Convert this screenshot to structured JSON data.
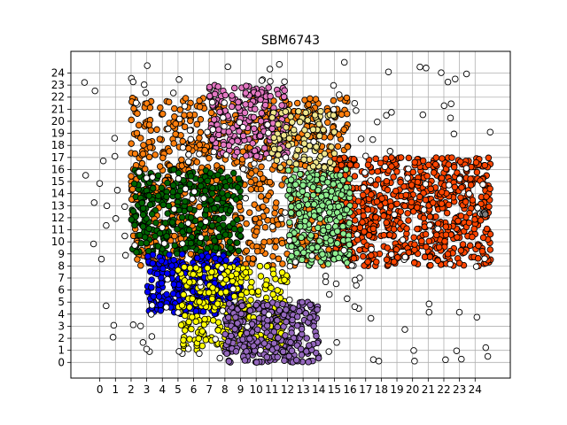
{
  "chart_data": {
    "type": "scatter",
    "title": "SBM6743",
    "xlabel": "",
    "ylabel": "",
    "xlim": [
      -1.85,
      26.25
    ],
    "ylim": [
      -1.3,
      25.8
    ],
    "x_ticks": [
      0,
      1,
      2,
      3,
      4,
      5,
      6,
      7,
      8,
      9,
      10,
      11,
      12,
      13,
      14,
      15,
      16,
      17,
      18,
      19,
      20,
      21,
      22,
      23,
      24
    ],
    "y_ticks": [
      0,
      1,
      2,
      3,
      4,
      5,
      6,
      7,
      8,
      9,
      10,
      11,
      12,
      13,
      14,
      15,
      16,
      17,
      18,
      19,
      20,
      21,
      22,
      23,
      24
    ],
    "grid": true,
    "legend": "none",
    "marker": "circle",
    "marker_edge_color": "#000000",
    "point_clusters": [
      {
        "color": "#ff7f0e",
        "x_range": [
          2,
          16
        ],
        "y_range": [
          8,
          22
        ],
        "approx_points": 900
      },
      {
        "color": "#ff4500",
        "x_range": [
          15,
          25
        ],
        "y_range": [
          8,
          17
        ],
        "approx_points": 700
      },
      {
        "color": "#006400",
        "x_range": [
          2,
          9
        ],
        "y_range": [
          9,
          16
        ],
        "approx_points": 350
      },
      {
        "color": "#90ee90",
        "x_range": [
          12,
          16
        ],
        "y_range": [
          8,
          16
        ],
        "approx_points": 300
      },
      {
        "color": "#0000ff",
        "x_range": [
          3,
          9
        ],
        "y_range": [
          4,
          9
        ],
        "approx_points": 300
      },
      {
        "color": "#ffff00",
        "x_range": [
          5,
          12
        ],
        "y_range": [
          1,
          8
        ],
        "approx_points": 300
      },
      {
        "color": "#9467bd",
        "x_range": [
          8,
          14
        ],
        "y_range": [
          0,
          5
        ],
        "approx_points": 300
      },
      {
        "color": "#e377c2",
        "x_range": [
          7,
          12
        ],
        "y_range": [
          17,
          23
        ],
        "approx_points": 200
      },
      {
        "color": "#f0e68c",
        "x_range": [
          11,
          15
        ],
        "y_range": [
          16,
          21
        ],
        "approx_points": 100
      },
      {
        "color": "#ffffff",
        "x_range": [
          -1,
          25
        ],
        "y_range": [
          0,
          25
        ],
        "approx_points": 200
      },
      {
        "color": "#808080",
        "x_range": [
          24,
          25
        ],
        "y_range": [
          12,
          13
        ],
        "approx_points": 3
      }
    ]
  }
}
